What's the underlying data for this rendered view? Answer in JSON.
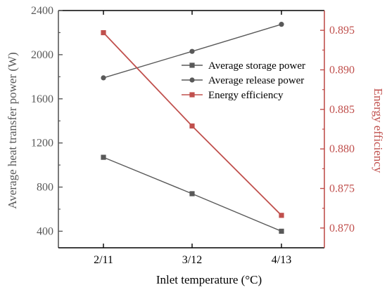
{
  "chart_data": {
    "type": "line",
    "categories": [
      "2/11",
      "3/12",
      "4/13"
    ],
    "xlabel": "Inlet temperature (°C)",
    "ylabel_left": "Average heat transfer power (W)",
    "ylabel_right": "Energy efficiency",
    "ylim_left": [
      250,
      2400
    ],
    "yticks_left": [
      400,
      800,
      1200,
      1600,
      2000,
      2400
    ],
    "ylim_right": [
      0.8675,
      0.8975
    ],
    "yticks_right": [
      0.87,
      0.875,
      0.88,
      0.885,
      0.89,
      0.895
    ],
    "legend_position": "top-right",
    "series": [
      {
        "name": "Average storage power",
        "axis": "left",
        "marker": "square",
        "color": "#595959",
        "values": [
          1070,
          740,
          400
        ]
      },
      {
        "name": "Average release power",
        "axis": "left",
        "marker": "circle",
        "color": "#595959",
        "values": [
          1790,
          2030,
          2275
        ]
      },
      {
        "name": "Energy efficiency",
        "axis": "right",
        "marker": "square",
        "color": "#c0504d",
        "values": [
          0.8947,
          0.8829,
          0.8716
        ]
      }
    ],
    "axis_colors": {
      "left": "#595959",
      "right": "#c0504d"
    }
  }
}
